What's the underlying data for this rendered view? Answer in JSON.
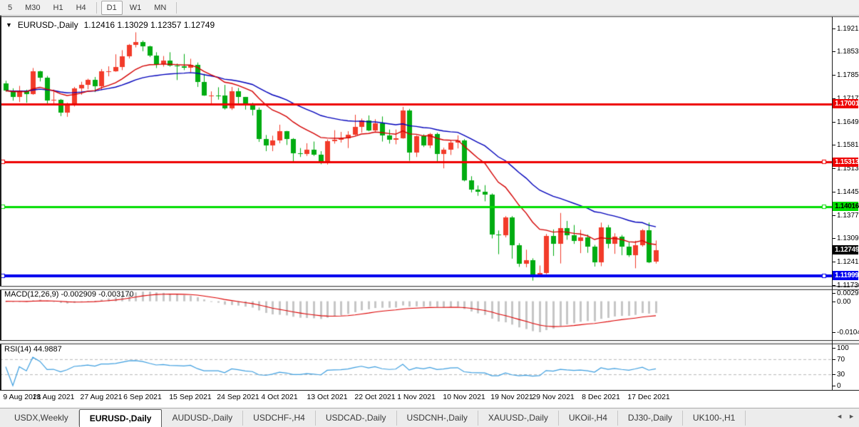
{
  "toolbar": {
    "timeframes": [
      "5",
      "M30",
      "H1",
      "H4",
      "D1",
      "W1",
      "MN"
    ],
    "active": "D1"
  },
  "title": {
    "symbol": "EURUSD-,Daily",
    "ohlc": "1.12416 1.13029 1.12357 1.12749"
  },
  "chart_data": {
    "type": "candlestick",
    "symbol": "EURUSD-,Daily",
    "timeframe": "Daily",
    "last_bar": {
      "open": 1.12416,
      "high": 1.13029,
      "low": 1.12357,
      "close": 1.12749
    },
    "candles": [
      [
        1.176,
        1.1768,
        1.1736,
        1.1739
      ],
      [
        1.1739,
        1.1746,
        1.171,
        1.1721
      ],
      [
        1.1721,
        1.1753,
        1.1706,
        1.1739
      ],
      [
        1.1739,
        1.1742,
        1.1704,
        1.1729
      ],
      [
        1.1729,
        1.1805,
        1.1727,
        1.1796
      ],
      [
        1.1796,
        1.1797,
        1.1766,
        1.1777
      ],
      [
        1.1777,
        1.1782,
        1.1702,
        1.171
      ],
      [
        1.171,
        1.1742,
        1.17,
        1.1712
      ],
      [
        1.1712,
        1.1715,
        1.1665,
        1.1675
      ],
      [
        1.1675,
        1.1704,
        1.1663,
        1.1697
      ],
      [
        1.1697,
        1.175,
        1.1693,
        1.1745
      ],
      [
        1.1745,
        1.1765,
        1.1727,
        1.1756
      ],
      [
        1.1756,
        1.1774,
        1.1743,
        1.177
      ],
      [
        1.177,
        1.1779,
        1.1735,
        1.1751
      ],
      [
        1.1751,
        1.1802,
        1.1741,
        1.1796
      ],
      [
        1.1796,
        1.181,
        1.1781,
        1.1796
      ],
      [
        1.1796,
        1.1845,
        1.1794,
        1.1809
      ],
      [
        1.1809,
        1.1857,
        1.1799,
        1.1839
      ],
      [
        1.1839,
        1.1875,
        1.1833,
        1.1873
      ],
      [
        1.1873,
        1.1909,
        1.1865,
        1.188
      ],
      [
        1.188,
        1.1885,
        1.1854,
        1.1868
      ],
      [
        1.1868,
        1.187,
        1.1837,
        1.1841
      ],
      [
        1.1841,
        1.1851,
        1.1805,
        1.1817
      ],
      [
        1.1817,
        1.184,
        1.1809,
        1.1826
      ],
      [
        1.1826,
        1.1851,
        1.1809,
        1.1812
      ],
      [
        1.1812,
        1.1818,
        1.177,
        1.181
      ],
      [
        1.181,
        1.1846,
        1.1799,
        1.1805
      ],
      [
        1.1805,
        1.1832,
        1.1793,
        1.1815
      ],
      [
        1.1815,
        1.1821,
        1.175,
        1.1765
      ],
      [
        1.1765,
        1.1788,
        1.1724,
        1.1725
      ],
      [
        1.1725,
        1.1737,
        1.17,
        1.1726
      ],
      [
        1.1726,
        1.1749,
        1.1713,
        1.1725
      ],
      [
        1.1725,
        1.1756,
        1.1684,
        1.1687
      ],
      [
        1.1687,
        1.175,
        1.1683,
        1.1738
      ],
      [
        1.1738,
        1.1747,
        1.1701,
        1.172
      ],
      [
        1.172,
        1.1721,
        1.1684,
        1.1696
      ],
      [
        1.1696,
        1.1704,
        1.1667,
        1.1683
      ],
      [
        1.1683,
        1.169,
        1.159,
        1.1598
      ],
      [
        1.1598,
        1.161,
        1.1563,
        1.158
      ],
      [
        1.158,
        1.1608,
        1.1563,
        1.1595
      ],
      [
        1.1595,
        1.164,
        1.1586,
        1.1622
      ],
      [
        1.1622,
        1.1622,
        1.1581,
        1.1599
      ],
      [
        1.1599,
        1.1601,
        1.1529,
        1.1557
      ],
      [
        1.1557,
        1.1572,
        1.1546,
        1.1555
      ],
      [
        1.1555,
        1.1586,
        1.1549,
        1.1567
      ],
      [
        1.1567,
        1.1591,
        1.1549,
        1.1553
      ],
      [
        1.1553,
        1.1563,
        1.1525,
        1.1529
      ],
      [
        1.1529,
        1.1597,
        1.1524,
        1.1592
      ],
      [
        1.1592,
        1.1624,
        1.1585,
        1.1597
      ],
      [
        1.1597,
        1.1619,
        1.1588,
        1.1601
      ],
      [
        1.1601,
        1.1621,
        1.1572,
        1.161
      ],
      [
        1.161,
        1.1669,
        1.1609,
        1.1633
      ],
      [
        1.1633,
        1.1658,
        1.1617,
        1.1652
      ],
      [
        1.1652,
        1.1667,
        1.1621,
        1.1624
      ],
      [
        1.1624,
        1.1656,
        1.162,
        1.1643
      ],
      [
        1.1643,
        1.1664,
        1.1591,
        1.1609
      ],
      [
        1.1609,
        1.1626,
        1.1585,
        1.1596
      ],
      [
        1.1596,
        1.1626,
        1.1583,
        1.1601
      ],
      [
        1.1601,
        1.1692,
        1.1599,
        1.1682
      ],
      [
        1.1682,
        1.1686,
        1.1535,
        1.1558
      ],
      [
        1.1558,
        1.1609,
        1.1546,
        1.1606
      ],
      [
        1.1606,
        1.1612,
        1.1575,
        1.158
      ],
      [
        1.158,
        1.1616,
        1.1572,
        1.1612
      ],
      [
        1.1612,
        1.1617,
        1.1528,
        1.1555
      ],
      [
        1.1555,
        1.1573,
        1.1513,
        1.1567
      ],
      [
        1.1567,
        1.1594,
        1.1552,
        1.1588
      ],
      [
        1.1588,
        1.1609,
        1.1571,
        1.1594
      ],
      [
        1.1594,
        1.1598,
        1.1475,
        1.1479
      ],
      [
        1.1479,
        1.149,
        1.1443,
        1.145
      ],
      [
        1.145,
        1.1463,
        1.1433,
        1.1445
      ],
      [
        1.1445,
        1.1464,
        1.1417,
        1.1437
      ],
      [
        1.1437,
        1.144,
        1.1309,
        1.132
      ],
      [
        1.132,
        1.1332,
        1.1263,
        1.1318
      ],
      [
        1.1318,
        1.1374,
        1.1312,
        1.1371
      ],
      [
        1.1371,
        1.1374,
        1.125,
        1.1289
      ],
      [
        1.1289,
        1.1295,
        1.1226,
        1.1236
      ],
      [
        1.1236,
        1.1276,
        1.1225,
        1.1246
      ],
      [
        1.1246,
        1.1251,
        1.1186,
        1.1199
      ],
      [
        1.1199,
        1.123,
        1.1196,
        1.1209
      ],
      [
        1.1209,
        1.1322,
        1.1205,
        1.1317
      ],
      [
        1.1317,
        1.1335,
        1.1258,
        1.1293
      ],
      [
        1.1293,
        1.1383,
        1.1236,
        1.1339
      ],
      [
        1.1339,
        1.136,
        1.1305,
        1.1318
      ],
      [
        1.1318,
        1.1348,
        1.1293,
        1.1302
      ],
      [
        1.1302,
        1.1334,
        1.1266,
        1.1311
      ],
      [
        1.1311,
        1.132,
        1.1267,
        1.1285
      ],
      [
        1.1285,
        1.129,
        1.1227,
        1.124
      ],
      [
        1.124,
        1.1355,
        1.1228,
        1.1342
      ],
      [
        1.1342,
        1.1348,
        1.128,
        1.1294
      ],
      [
        1.1294,
        1.1324,
        1.1264,
        1.1315
      ],
      [
        1.1315,
        1.1319,
        1.126,
        1.1284
      ],
      [
        1.1284,
        1.1299,
        1.1255,
        1.126
      ],
      [
        1.126,
        1.1302,
        1.1222,
        1.129
      ],
      [
        1.129,
        1.1336,
        1.1285,
        1.1332
      ],
      [
        1.1332,
        1.1355,
        1.1237,
        1.124
      ],
      [
        1.12416,
        1.13029,
        1.12357,
        1.12749
      ]
    ],
    "candle_colors": {
      "up": "#F23B2A",
      "down": "#00AC11"
    },
    "x_labels": [
      {
        "label": "9 Aug 2021",
        "index": 0
      },
      {
        "label": "18 Aug 2021",
        "index": 7
      },
      {
        "label": "27 Aug 2021",
        "index": 14
      },
      {
        "label": "6 Sep 2021",
        "index": 20
      },
      {
        "label": "15 Sep 2021",
        "index": 27
      },
      {
        "label": "24 Sep 2021",
        "index": 34
      },
      {
        "label": "4 Oct 2021",
        "index": 40
      },
      {
        "label": "13 Oct 2021",
        "index": 47
      },
      {
        "label": "22 Oct 2021",
        "index": 54
      },
      {
        "label": "1 Nov 2021",
        "index": 60
      },
      {
        "label": "10 Nov 2021",
        "index": 67
      },
      {
        "label": "19 Nov 2021",
        "index": 74
      },
      {
        "label": "29 Nov 2021",
        "index": 80
      },
      {
        "label": "8 Dec 2021",
        "index": 87
      },
      {
        "label": "17 Dec 2021",
        "index": 94
      }
    ],
    "y_axis": {
      "price_top": 1.19533,
      "price_bottom": 1.11708,
      "ticks": [
        "1.19210",
        "1.18530",
        "1.17850",
        "1.17170",
        "1.16490",
        "1.15810",
        "1.15130",
        "1.14450",
        "1.13770",
        "1.13090",
        "1.12410",
        "1.11730"
      ]
    },
    "levels": [
      {
        "price": 1.17001,
        "label": "1.17001",
        "color": "#EE0000",
        "text_color": "#FFFFFF",
        "line_width": 3,
        "handles": false
      },
      {
        "price": 1.15313,
        "label": "1.15313",
        "color": "#EE0000",
        "text_color": "#FFFFFF",
        "line_width": 3,
        "handles": true
      },
      {
        "price": 1.14016,
        "label": "1.14016",
        "color": "#00DD00",
        "text_color": "#000000",
        "line_width": 3,
        "handles": true
      },
      {
        "price": 1.11999,
        "label": "1.11999",
        "color": "#0000EE",
        "text_color": "#FFFFFF",
        "line_width": 4,
        "handles": true
      }
    ],
    "current_price": {
      "price": 1.12749,
      "label": "1.12749",
      "bg": "#000000",
      "text_color": "#FFFFFF"
    },
    "ma_lines": [
      {
        "name": "ma-fast",
        "type": "ema",
        "period": 13,
        "color": "#D40000"
      },
      {
        "name": "ma-slow",
        "type": "ema",
        "period": 30,
        "color": "#0000BB"
      }
    ],
    "macd": {
      "fast": 12,
      "slow": 26,
      "signal": 9,
      "label": "MACD(12,26,9) -0.002909 -0.003170",
      "value_main": -0.002909,
      "value_signal": -0.00317,
      "histogram_color": "#C6C6C6",
      "signal_color": "#DD0000",
      "axis_labels": {
        "max": "0.002966",
        "zero": "0.00",
        "min": "-0.01042"
      }
    },
    "rsi": {
      "period": 14,
      "label": "RSI(14) 44.9887",
      "value": 44.9887,
      "color": "#3E9FE0",
      "range": [
        0,
        100
      ],
      "level_lines": [
        70,
        30
      ],
      "axis_ticks": [
        100,
        70,
        30,
        0
      ]
    }
  },
  "tabs": {
    "items": [
      {
        "label": "USDX,Weekly",
        "active": false
      },
      {
        "label": "EURUSD-,Daily",
        "active": true
      },
      {
        "label": "AUDUSD-,Daily",
        "active": false
      },
      {
        "label": "USDCHF-,H4",
        "active": false
      },
      {
        "label": "USDCAD-,Daily",
        "active": false
      },
      {
        "label": "USDCNH-,Daily",
        "active": false
      },
      {
        "label": "XAUUSD-,Daily",
        "active": false
      },
      {
        "label": "UKOil-,H4",
        "active": false
      },
      {
        "label": "DJ30-,Daily",
        "active": false
      },
      {
        "label": "UK100-,H1",
        "active": false
      }
    ],
    "scroll_left": "◄",
    "scroll_right": "►"
  }
}
